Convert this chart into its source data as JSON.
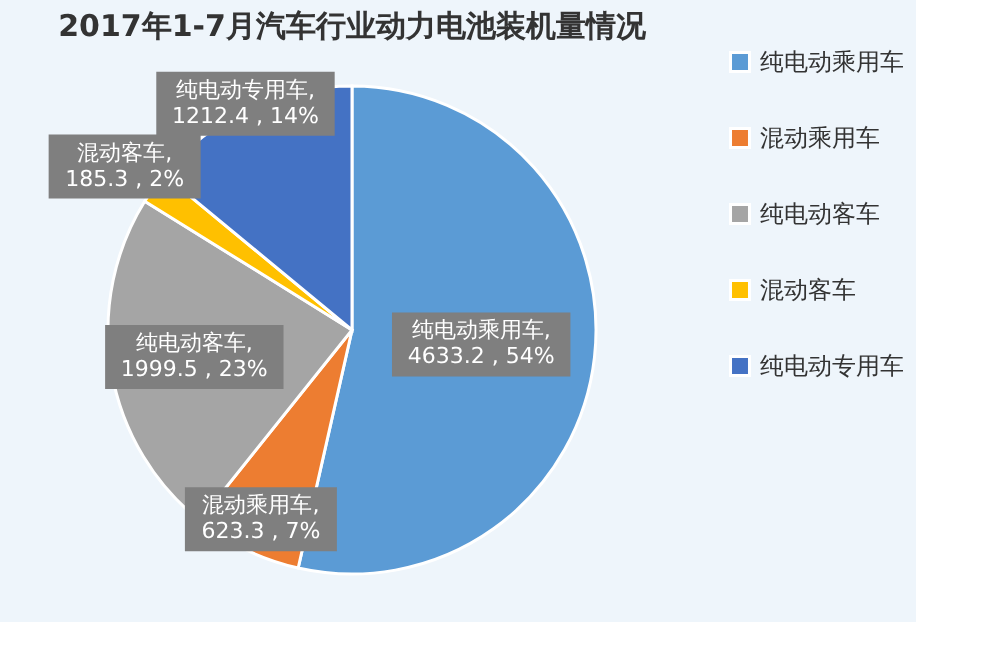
{
  "chart_data": {
    "type": "pie",
    "title": "2017年1-7月汽车行业动力电池装机量情况",
    "categories": [
      "纯电动乘用车",
      "混动乘用车",
      "纯电动客车",
      "混动客车",
      "纯电动专用车"
    ],
    "values": [
      4633.2,
      623.3,
      1999.5,
      185.3,
      1212.4
    ],
    "colors": [
      "#5b9bd5",
      "#ed7d31",
      "#a5a5a5",
      "#ffc000",
      "#4472c4"
    ],
    "value_labels": [
      "纯电动乘用车, 4633.2 , 54%",
      "混动乘用车, 623.3 , 7%",
      "纯电动客车, 1999.5 , 23%",
      "混动客车, 185.3 , 2%",
      "纯电动专用车, 1212.4 , 14%"
    ],
    "legend": "right"
  }
}
